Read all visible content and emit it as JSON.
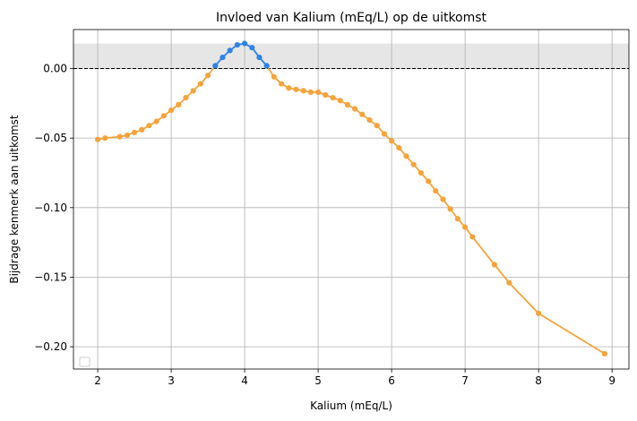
{
  "chart_data": {
    "type": "line",
    "title": "Invloed van Kalium (mEq/L) op de uitkomst",
    "xlabel": "Kalium (mEq/L)",
    "ylabel": "Bijdrage kenmerk aan uitkomst",
    "xlim": [
      1.67,
      9.23
    ],
    "ylim": [
      -0.216,
      0.028
    ],
    "xticks": [
      2,
      3,
      4,
      5,
      6,
      7,
      8,
      9
    ],
    "xtick_labels": [
      "2",
      "3",
      "4",
      "5",
      "6",
      "7",
      "8",
      "9"
    ],
    "yticks": [
      0.0,
      -0.05,
      -0.1,
      -0.15,
      -0.2
    ],
    "ytick_labels": [
      "0.00",
      "−0.05",
      "−0.10",
      "−0.15",
      "−0.20"
    ],
    "grid": true,
    "legend": "lower-left (empty)",
    "reference_line": {
      "y": 0.0,
      "style": "dashed",
      "color": "#000000"
    },
    "shaded_band": {
      "y0": 0.0,
      "y1": 0.018,
      "color": "#e6e6e6"
    },
    "colors": {
      "negative": "#f5a33a",
      "positive": "#2e82e8"
    },
    "series": [
      {
        "x": [
          2.0,
          2.1,
          2.3,
          2.4,
          2.5,
          2.6,
          2.7,
          2.8,
          2.9,
          3.0,
          3.1,
          3.2,
          3.3,
          3.4,
          3.5,
          3.6,
          3.7,
          3.8,
          3.9,
          4.0,
          4.1,
          4.2,
          4.3,
          4.4,
          4.5,
          4.6,
          4.7,
          4.8,
          4.9,
          5.0,
          5.1,
          5.2,
          5.3,
          5.4,
          5.5,
          5.6,
          5.7,
          5.8,
          5.9,
          6.0,
          6.1,
          6.2,
          6.3,
          6.4,
          6.5,
          6.6,
          6.7,
          6.8,
          6.9,
          7.0,
          7.1,
          7.4,
          7.6,
          8.0,
          8.9
        ],
        "values": [
          -0.051,
          -0.05,
          -0.049,
          -0.048,
          -0.046,
          -0.044,
          -0.041,
          -0.038,
          -0.034,
          -0.03,
          -0.026,
          -0.021,
          -0.016,
          -0.011,
          -0.005,
          0.002,
          0.008,
          0.013,
          0.017,
          0.018,
          0.015,
          0.008,
          0.002,
          -0.006,
          -0.011,
          -0.014,
          -0.015,
          -0.016,
          -0.017,
          -0.017,
          -0.019,
          -0.021,
          -0.023,
          -0.026,
          -0.029,
          -0.033,
          -0.037,
          -0.041,
          -0.047,
          -0.052,
          -0.057,
          -0.063,
          -0.069,
          -0.075,
          -0.081,
          -0.088,
          -0.094,
          -0.101,
          -0.108,
          -0.114,
          -0.121,
          -0.141,
          -0.154,
          -0.176,
          -0.205
        ]
      }
    ]
  }
}
